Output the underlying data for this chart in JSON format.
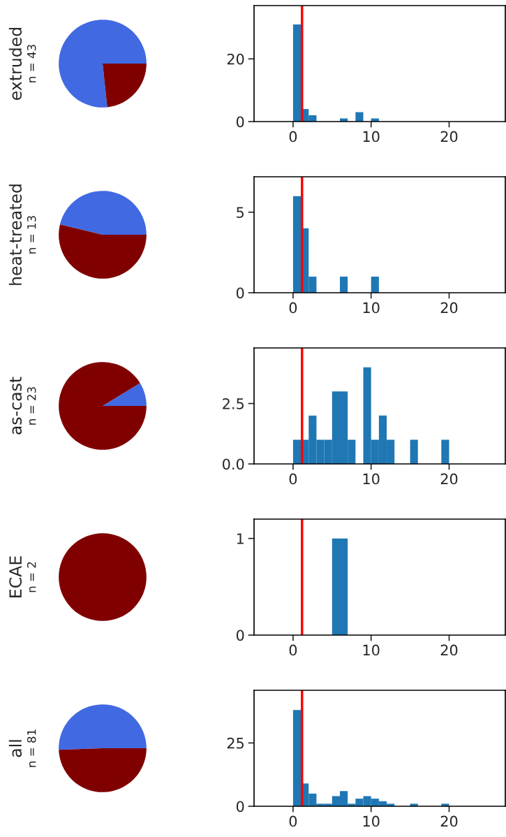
{
  "chart_data": [
    {
      "type": "pie",
      "ylabel": "extruded",
      "subtitle": "n = 43",
      "categories": [
        null,
        null
      ],
      "values": [
        76.7,
        23.3
      ],
      "colors": [
        "#4169e1",
        "#800000"
      ]
    },
    {
      "type": "histogram",
      "bins": [
        0,
        1,
        2,
        3,
        4,
        5,
        6,
        7,
        8,
        9,
        10,
        11
      ],
      "values": [
        31,
        4,
        2,
        0,
        0,
        0,
        1,
        0,
        3,
        0,
        1
      ],
      "color": "#1f77b4",
      "xlim": [
        -5,
        27.2
      ],
      "xticks": [
        0,
        10,
        20
      ],
      "ylim": [
        0,
        37
      ],
      "yticks": [
        0,
        20
      ],
      "ref_lines": [
        {
          "axis": "x",
          "value": 1.15,
          "color": "#ff0000"
        }
      ]
    },
    {
      "type": "pie",
      "ylabel": "heat-treated",
      "subtitle": "n = 13",
      "categories": [
        null,
        null
      ],
      "values": [
        46.2,
        53.8
      ],
      "colors": [
        "#4169e1",
        "#800000"
      ]
    },
    {
      "type": "histogram",
      "bins": [
        0,
        1,
        2,
        3,
        4,
        5,
        6,
        7,
        8,
        9,
        10,
        11
      ],
      "values": [
        6,
        4,
        1,
        0,
        0,
        0,
        1,
        0,
        0,
        0,
        1
      ],
      "color": "#1f77b4",
      "xlim": [
        -5,
        27.2
      ],
      "xticks": [
        0,
        10,
        20
      ],
      "ylim": [
        0,
        7.2
      ],
      "yticks": [
        0,
        5
      ],
      "ref_lines": [
        {
          "axis": "x",
          "value": 1.15,
          "color": "#ff0000"
        }
      ]
    },
    {
      "type": "pie",
      "ylabel": "as-cast",
      "subtitle": "n = 23",
      "categories": [
        null,
        null
      ],
      "values": [
        8.7,
        91.3
      ],
      "colors": [
        "#4169e1",
        "#800000"
      ]
    },
    {
      "type": "histogram",
      "bins": [
        0,
        1,
        2,
        3,
        4,
        5,
        6,
        7,
        8,
        9,
        10,
        11,
        12,
        13,
        14,
        15,
        16,
        17,
        18,
        19,
        20
      ],
      "values": [
        1,
        1,
        2,
        1,
        1,
        3,
        3,
        1,
        0,
        4,
        1,
        2,
        1,
        0,
        0,
        1,
        0,
        0,
        0,
        1
      ],
      "color": "#1f77b4",
      "xlim": [
        -5,
        27.2
      ],
      "xticks": [
        0,
        10,
        20
      ],
      "ylim": [
        0,
        4.8
      ],
      "yticks": [
        {
          "value": 0,
          "label": "0.0"
        },
        2.5
      ],
      "ref_lines": [
        {
          "axis": "x",
          "value": 1.15,
          "color": "#ff0000"
        }
      ]
    },
    {
      "type": "pie",
      "ylabel": "ECAE",
      "subtitle": "n = 2",
      "categories": [
        null
      ],
      "values": [
        100
      ],
      "colors": [
        "#800000"
      ]
    },
    {
      "type": "histogram",
      "bins": [
        5,
        6,
        7
      ],
      "values": [
        1,
        1
      ],
      "color": "#1f77b4",
      "xlim": [
        -5,
        27.2
      ],
      "xticks": [
        0,
        10,
        20
      ],
      "ylim": [
        0,
        1.2
      ],
      "yticks": [
        0,
        1
      ],
      "ref_lines": [
        {
          "axis": "x",
          "value": 1.15,
          "color": "#ff0000"
        }
      ]
    },
    {
      "type": "pie",
      "ylabel": "all",
      "subtitle": "n = 81",
      "categories": [
        null,
        null
      ],
      "values": [
        50.6,
        49.4
      ],
      "colors": [
        "#4169e1",
        "#800000"
      ]
    },
    {
      "type": "histogram",
      "bins": [
        0,
        1,
        2,
        3,
        4,
        5,
        6,
        7,
        8,
        9,
        10,
        11,
        12,
        13,
        14,
        15,
        16,
        17,
        18,
        19,
        20
      ],
      "values": [
        38,
        9,
        5,
        1,
        1,
        4,
        6,
        1,
        3,
        4,
        3,
        2,
        1,
        0,
        0,
        1,
        0,
        0,
        0,
        1
      ],
      "color": "#1f77b4",
      "xlim": [
        -5,
        27.2
      ],
      "xticks": [
        0,
        10,
        20
      ],
      "ylim": [
        0,
        45.8
      ],
      "yticks": [
        0,
        25
      ],
      "ref_lines": [
        {
          "axis": "x",
          "value": 1.15,
          "color": "#ff0000"
        }
      ]
    }
  ]
}
